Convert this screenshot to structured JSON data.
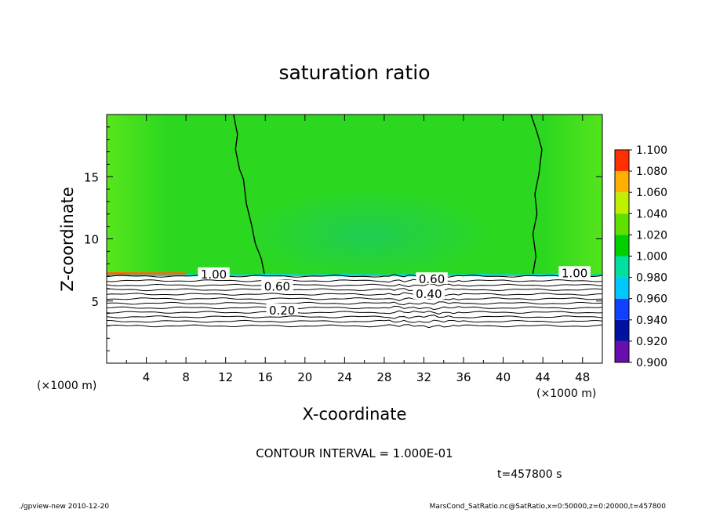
{
  "chart_data": {
    "type": "heatmap",
    "title": "saturation ratio",
    "xlabel": "X-coordinate",
    "ylabel": "Z-coordinate",
    "x_unit": "(×1000 m)",
    "y_unit": "(×1000 m)",
    "xlim": [
      0,
      50
    ],
    "ylim": [
      0,
      20
    ],
    "xticks": [
      4,
      8,
      12,
      16,
      20,
      24,
      28,
      32,
      36,
      40,
      44,
      48
    ],
    "yticks": [
      5,
      10,
      15
    ],
    "colorbar": {
      "levels": [
        "0.900",
        "0.920",
        "0.940",
        "0.960",
        "0.980",
        "1.000",
        "1.020",
        "1.040",
        "1.060",
        "1.080",
        "1.100"
      ],
      "colors": [
        "#6a0dad",
        "#0010a0",
        "#1040ff",
        "#00c8ff",
        "#00e0a0",
        "#00d000",
        "#60e000",
        "#c0f000",
        "#ffb000",
        "#ff3000",
        "#ff9090"
      ]
    },
    "fill": {
      "below_level": "#ffffff",
      "field_color": "#2bd81f",
      "layer_top_color": "#ff6a00",
      "interface_color": "#00d8ff"
    },
    "contour_labels": [
      {
        "text": "1.00",
        "x": 10.8,
        "y": 7.2
      },
      {
        "text": "0.60",
        "x": 17.2,
        "y": 6.2
      },
      {
        "text": "0.20",
        "x": 17.7,
        "y": 4.3
      },
      {
        "text": "0.60",
        "x": 32.8,
        "y": 6.8
      },
      {
        "text": "0.40",
        "x": 32.5,
        "y": 5.6
      },
      {
        "text": "1.00",
        "x": 47.2,
        "y": 7.3
      }
    ],
    "contour_interval": "CONTOUR INTERVAL = 1.000E-01",
    "time_label": "t=457800 s"
  },
  "footer": {
    "left": "./gpview-new   2010-12-20",
    "right": "MarsCond_SatRatio.nc@SatRatio,x=0:50000,z=0:20000,t=457800"
  }
}
